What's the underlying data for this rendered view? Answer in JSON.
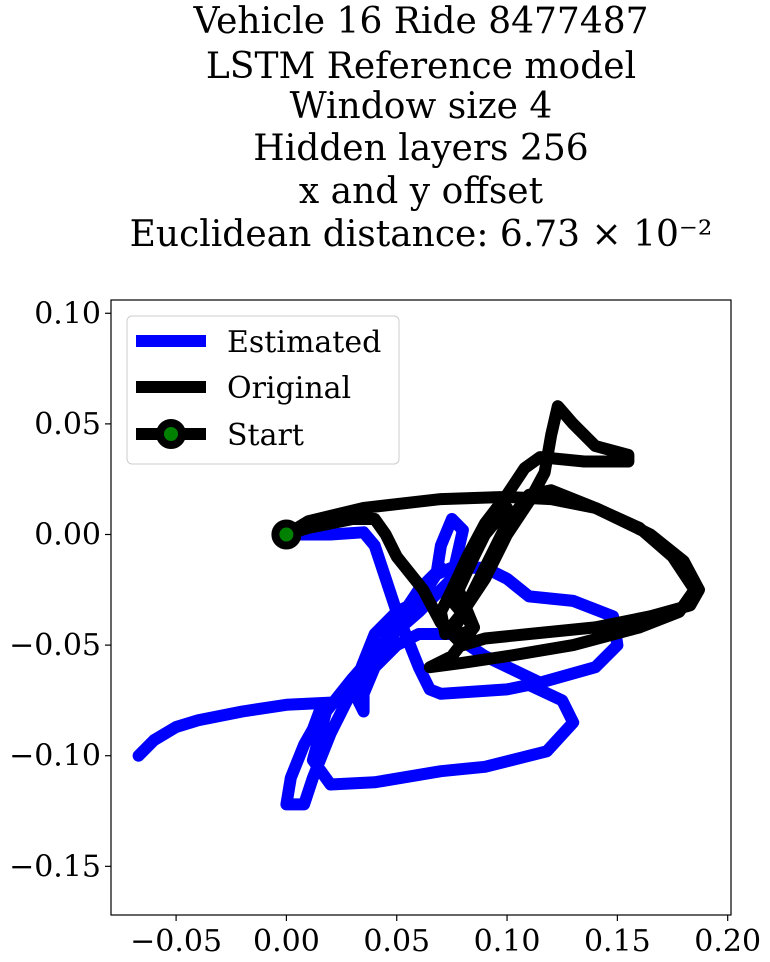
{
  "chart_data": {
    "type": "line",
    "title_lines": [
      "Vehicle 16 Ride 8477487",
      "LSTM Reference model",
      "Window size 4",
      "Hidden layers 256",
      "x and y offset",
      "Euclidean distance: 6.73 × 10⁻²"
    ],
    "xlabel": "",
    "ylabel": "",
    "xlim": [
      -0.0795,
      0.2015
    ],
    "ylim": [
      -0.172,
      0.106
    ],
    "x_ticks": [
      -0.05,
      0.0,
      0.05,
      0.1,
      0.15,
      0.2
    ],
    "x_tick_labels": [
      "−0.05",
      "0.00",
      "0.05",
      "0.10",
      "0.15",
      "0.20"
    ],
    "y_ticks": [
      0.1,
      0.05,
      0.0,
      -0.05,
      -0.1,
      -0.15
    ],
    "y_tick_labels": [
      "0.10",
      "0.05",
      "0.00",
      "−0.05",
      "−0.10",
      "−0.15"
    ],
    "grid": false,
    "legend_position": "top-left",
    "legend": [
      {
        "label": "Estimated",
        "color": "#0000ff",
        "marker": "none"
      },
      {
        "label": "Original",
        "color": "#000000",
        "marker": "none"
      },
      {
        "label": "Start",
        "color": "#000000",
        "marker": "circle",
        "marker_face": "#008000"
      }
    ],
    "series": [
      {
        "name": "Estimated",
        "color": "#0000ff",
        "points": [
          [
            0.0,
            0.0
          ],
          [
            0.02,
            0.0
          ],
          [
            0.035,
            0.001
          ],
          [
            0.04,
            -0.005
          ],
          [
            0.045,
            -0.02
          ],
          [
            0.05,
            -0.035
          ],
          [
            0.06,
            -0.06
          ],
          [
            0.065,
            -0.07
          ],
          [
            0.07,
            -0.072
          ],
          [
            0.1,
            -0.07
          ],
          [
            0.11,
            -0.068
          ],
          [
            0.125,
            -0.075
          ],
          [
            0.13,
            -0.085
          ],
          [
            0.118,
            -0.098
          ],
          [
            0.09,
            -0.105
          ],
          [
            0.07,
            -0.107
          ],
          [
            0.04,
            -0.112
          ],
          [
            0.02,
            -0.113
          ],
          [
            0.012,
            -0.102
          ],
          [
            0.018,
            -0.08
          ],
          [
            0.03,
            -0.065
          ],
          [
            0.045,
            -0.048
          ],
          [
            0.06,
            -0.035
          ],
          [
            0.075,
            -0.02
          ],
          [
            0.08,
            0.002
          ],
          [
            0.075,
            0.007
          ],
          [
            0.07,
            -0.005
          ],
          [
            0.068,
            -0.018
          ],
          [
            0.075,
            -0.015
          ],
          [
            0.09,
            -0.015
          ],
          [
            0.1,
            -0.02
          ],
          [
            0.11,
            -0.028
          ],
          [
            0.13,
            -0.03
          ],
          [
            0.148,
            -0.037
          ],
          [
            0.15,
            -0.05
          ],
          [
            0.14,
            -0.06
          ],
          [
            0.115,
            -0.067
          ],
          [
            0.09,
            -0.055
          ],
          [
            0.075,
            -0.045
          ],
          [
            0.06,
            -0.045
          ],
          [
            0.05,
            -0.05
          ],
          [
            0.04,
            -0.06
          ],
          [
            0.035,
            -0.072
          ],
          [
            0.035,
            -0.08
          ],
          [
            0.03,
            -0.07
          ],
          [
            0.04,
            -0.045
          ],
          [
            0.05,
            -0.035
          ],
          [
            0.06,
            -0.03
          ],
          [
            0.07,
            -0.015
          ],
          [
            0.06,
            -0.025
          ],
          [
            0.05,
            -0.04
          ],
          [
            0.04,
            -0.055
          ],
          [
            0.03,
            -0.07
          ],
          [
            0.02,
            -0.09
          ],
          [
            0.012,
            -0.11
          ],
          [
            0.008,
            -0.122
          ],
          [
            0.0,
            -0.122
          ],
          [
            0.002,
            -0.11
          ],
          [
            0.008,
            -0.095
          ],
          [
            0.012,
            -0.088
          ],
          [
            0.015,
            -0.08
          ],
          [
            0.02,
            -0.076
          ],
          [
            0.0,
            -0.077
          ],
          [
            -0.02,
            -0.08
          ],
          [
            -0.04,
            -0.084
          ],
          [
            -0.05,
            -0.087
          ],
          [
            -0.06,
            -0.093
          ],
          [
            -0.067,
            -0.1
          ]
        ]
      },
      {
        "name": "Original",
        "color": "#000000",
        "points": [
          [
            0.0,
            0.0
          ],
          [
            0.01,
            0.006
          ],
          [
            0.035,
            0.012
          ],
          [
            0.07,
            0.016
          ],
          [
            0.1,
            0.017
          ],
          [
            0.12,
            0.016
          ],
          [
            0.14,
            0.012
          ],
          [
            0.165,
            0.0
          ],
          [
            0.18,
            -0.012
          ],
          [
            0.187,
            -0.025
          ],
          [
            0.183,
            -0.032
          ],
          [
            0.165,
            -0.037
          ],
          [
            0.14,
            -0.042
          ],
          [
            0.11,
            -0.045
          ],
          [
            0.09,
            -0.047
          ],
          [
            0.08,
            -0.05
          ],
          [
            0.075,
            -0.045
          ],
          [
            0.08,
            -0.035
          ],
          [
            0.09,
            -0.02
          ],
          [
            0.1,
            0.0
          ],
          [
            0.11,
            0.015
          ],
          [
            0.117,
            0.028
          ],
          [
            0.12,
            0.045
          ],
          [
            0.123,
            0.058
          ],
          [
            0.13,
            0.05
          ],
          [
            0.14,
            0.04
          ],
          [
            0.155,
            0.036
          ],
          [
            0.155,
            0.033
          ],
          [
            0.135,
            0.033
          ],
          [
            0.115,
            0.035
          ],
          [
            0.108,
            0.03
          ],
          [
            0.1,
            0.018
          ],
          [
            0.09,
            0.005
          ],
          [
            0.082,
            -0.01
          ],
          [
            0.075,
            -0.025
          ],
          [
            0.07,
            -0.035
          ],
          [
            0.072,
            -0.045
          ],
          [
            0.08,
            -0.035
          ],
          [
            0.09,
            -0.015
          ],
          [
            0.1,
            0.005
          ],
          [
            0.11,
            0.018
          ],
          [
            0.12,
            0.02
          ],
          [
            0.14,
            0.012
          ],
          [
            0.16,
            0.003
          ],
          [
            0.175,
            -0.01
          ],
          [
            0.185,
            -0.025
          ],
          [
            0.178,
            -0.035
          ],
          [
            0.16,
            -0.042
          ],
          [
            0.13,
            -0.05
          ],
          [
            0.1,
            -0.055
          ],
          [
            0.08,
            -0.058
          ],
          [
            0.065,
            -0.06
          ],
          [
            0.075,
            -0.055
          ],
          [
            0.085,
            -0.042
          ],
          [
            0.078,
            -0.025
          ],
          [
            0.085,
            -0.01
          ],
          [
            0.09,
            0.0
          ],
          [
            0.1,
            0.012
          ],
          [
            0.092,
            0.005
          ],
          [
            0.082,
            -0.015
          ],
          [
            0.075,
            -0.03
          ],
          [
            0.085,
            -0.042
          ],
          [
            0.08,
            -0.045
          ],
          [
            0.07,
            -0.04
          ],
          [
            0.062,
            -0.025
          ],
          [
            0.05,
            -0.01
          ],
          [
            0.045,
            0.0
          ],
          [
            0.04,
            0.007
          ],
          [
            0.03,
            0.007
          ],
          [
            0.01,
            0.003
          ],
          [
            0.0,
            0.0
          ]
        ]
      }
    ],
    "start_point": {
      "name": "Start",
      "x": 0.0,
      "y": 0.0,
      "edge_color": "#000000",
      "face_color": "#008000"
    }
  }
}
